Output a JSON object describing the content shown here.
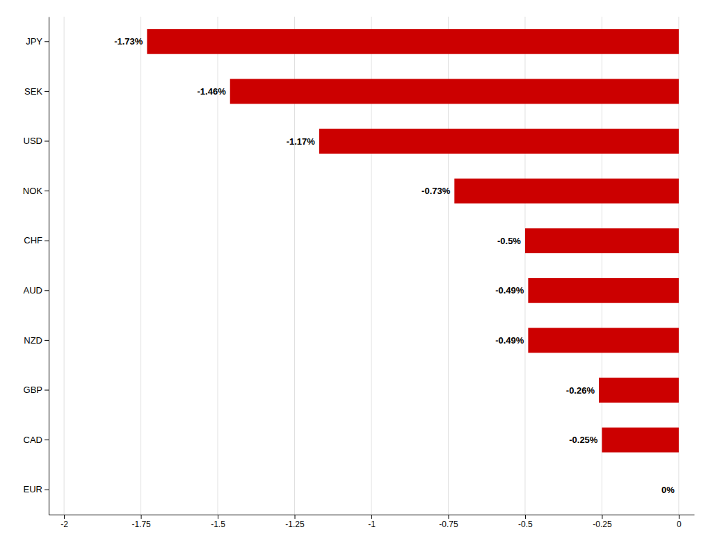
{
  "chart_data": {
    "type": "bar",
    "orientation": "horizontal",
    "categories": [
      "JPY",
      "SEK",
      "USD",
      "NOK",
      "CHF",
      "AUD",
      "NZD",
      "GBP",
      "CAD",
      "EUR"
    ],
    "values": [
      -1.73,
      -1.46,
      -1.17,
      -0.73,
      -0.5,
      -0.49,
      -0.49,
      -0.26,
      -0.25,
      0.0
    ],
    "value_labels": [
      "-1.73%",
      "-1.46%",
      "-1.17%",
      "-0.73%",
      "-0.5%",
      "-0.49%",
      "-0.49%",
      "-0.26%",
      "-0.25%",
      "0%"
    ],
    "color": "#cc0000",
    "xlim": [
      -2.05,
      0.05
    ],
    "xticks": [
      -2,
      -1.75,
      -1.5,
      -1.25,
      -1,
      -0.75,
      -0.5,
      -0.25,
      0
    ],
    "grid": true,
    "data_labels": true
  }
}
